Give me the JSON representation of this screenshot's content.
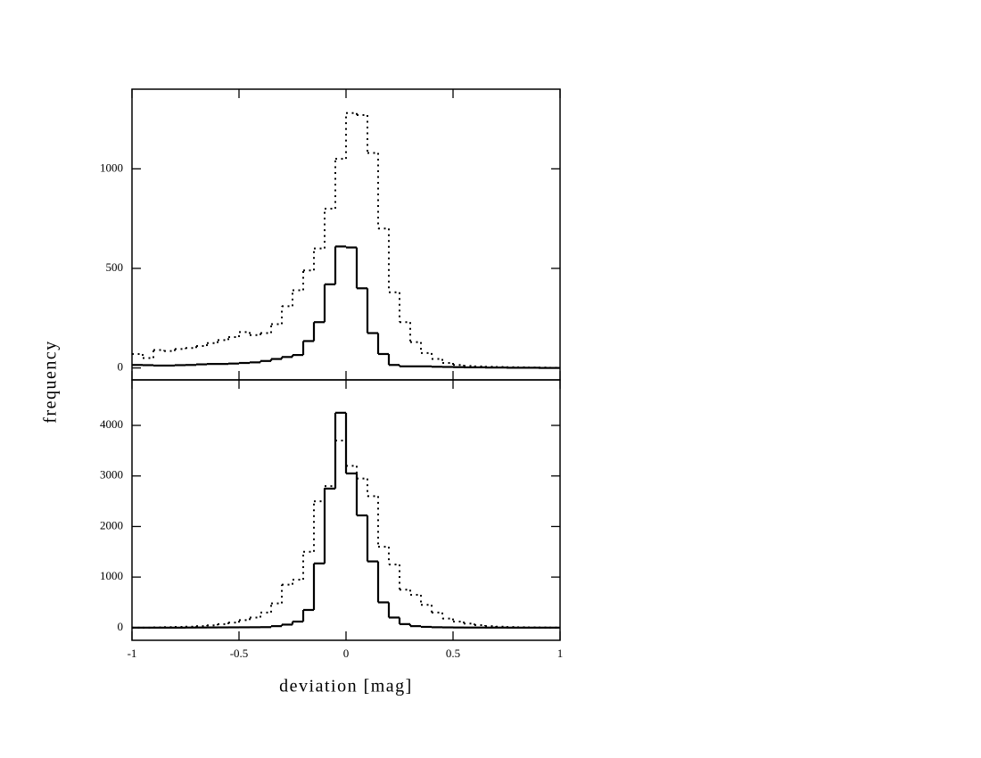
{
  "chart_data": [
    {
      "type": "histogram",
      "ylabel": "frequency",
      "bins": [
        -1,
        -0.95,
        -0.9,
        -0.85,
        -0.8,
        -0.75,
        -0.7,
        -0.65,
        -0.6,
        -0.55,
        -0.5,
        -0.45,
        -0.4,
        -0.35,
        -0.3,
        -0.25,
        -0.2,
        -0.15,
        -0.1,
        -0.05,
        0,
        0.05,
        0.1,
        0.15,
        0.2,
        0.25,
        0.3,
        0.35,
        0.4,
        0.45,
        0.5,
        0.55,
        0.6,
        0.65,
        0.7,
        0.75,
        0.8,
        0.85,
        0.9,
        0.95,
        1
      ],
      "series": [
        {
          "color": "#000000",
          "style": "dotted",
          "values": [
            70,
            50,
            90,
            85,
            95,
            100,
            110,
            125,
            140,
            155,
            180,
            165,
            175,
            220,
            310,
            390,
            490,
            600,
            800,
            1050,
            1280,
            1270,
            1080,
            700,
            380,
            230,
            130,
            75,
            45,
            25,
            15,
            10,
            8,
            6,
            5,
            4,
            3,
            2,
            2,
            1
          ]
        },
        {
          "color": "#000000",
          "style": "solid",
          "values": [
            15,
            14,
            12,
            12,
            14,
            15,
            18,
            20,
            20,
            22,
            25,
            28,
            35,
            45,
            55,
            65,
            135,
            230,
            420,
            610,
            605,
            400,
            175,
            70,
            15,
            8,
            8,
            8,
            6,
            5,
            4,
            3,
            3,
            2,
            2,
            1,
            1,
            1,
            0,
            0
          ]
        }
      ],
      "xlim": [
        -1,
        1
      ],
      "xticks": [
        -1,
        -0.5,
        0,
        0.5,
        1
      ],
      "ylim": [
        -60,
        1400
      ],
      "yticks": [
        0,
        500,
        1000
      ]
    },
    {
      "type": "histogram",
      "xlabel": "deviation [mag]",
      "bins": [
        -1,
        -0.95,
        -0.9,
        -0.85,
        -0.8,
        -0.75,
        -0.7,
        -0.65,
        -0.6,
        -0.55,
        -0.5,
        -0.45,
        -0.4,
        -0.35,
        -0.3,
        -0.25,
        -0.2,
        -0.15,
        -0.1,
        -0.05,
        0,
        0.05,
        0.1,
        0.15,
        0.2,
        0.25,
        0.3,
        0.35,
        0.4,
        0.45,
        0.5,
        0.55,
        0.6,
        0.65,
        0.7,
        0.75,
        0.8,
        0.85,
        0.9,
        0.95,
        1
      ],
      "series": [
        {
          "color": "#000000",
          "style": "dotted",
          "values": [
            0,
            0,
            5,
            10,
            15,
            20,
            30,
            45,
            70,
            100,
            150,
            200,
            300,
            480,
            850,
            950,
            1500,
            2500,
            2800,
            3700,
            3200,
            2950,
            2600,
            1600,
            1250,
            750,
            650,
            450,
            300,
            180,
            120,
            80,
            50,
            30,
            20,
            12,
            8,
            5,
            3,
            2
          ]
        },
        {
          "color": "#000000",
          "style": "solid",
          "values": [
            0,
            0,
            0,
            0,
            0,
            2,
            3,
            4,
            5,
            6,
            7,
            8,
            10,
            30,
            60,
            120,
            350,
            1270,
            2750,
            4250,
            3050,
            2220,
            1310,
            500,
            200,
            70,
            30,
            15,
            8,
            5,
            3,
            2,
            2,
            1,
            1,
            0,
            0,
            0,
            0,
            0
          ]
        }
      ],
      "xlim": [
        -1,
        1
      ],
      "xticks": [
        -1,
        -0.5,
        0,
        0.5,
        1
      ],
      "ylim": [
        -250,
        4900
      ],
      "yticks": [
        0,
        1000,
        2000,
        3000,
        4000
      ]
    }
  ]
}
